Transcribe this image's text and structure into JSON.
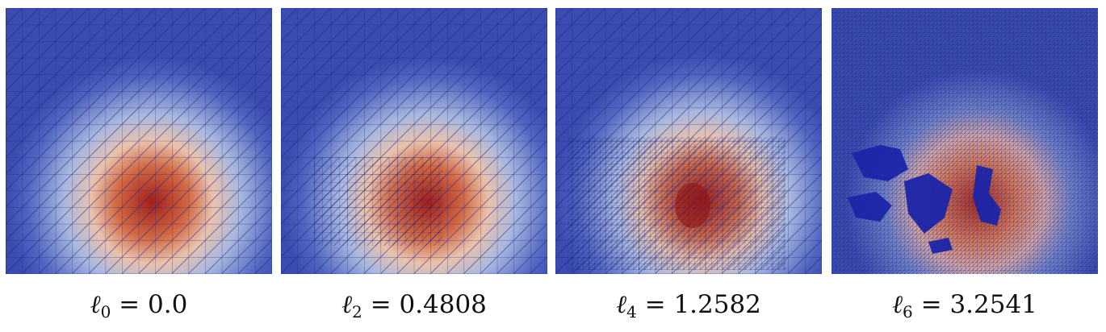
{
  "figure": {
    "panels": [
      {
        "symbol": "ℓ",
        "subscript": "0",
        "operator": "=",
        "value": "0.0",
        "colors": {
          "background": "#3b4bb0",
          "hot": "#b13a22",
          "mid": "#e8d3c6",
          "mesh": "#1a237e"
        }
      },
      {
        "symbol": "ℓ",
        "subscript": "2",
        "operator": "=",
        "value": "0.4808",
        "colors": {
          "background": "#3b4bb0",
          "hot": "#b13a22",
          "mid": "#e8d3c6",
          "mesh": "#1a237e"
        }
      },
      {
        "symbol": "ℓ",
        "subscript": "4",
        "operator": "=",
        "value": "1.2582",
        "colors": {
          "background": "#3b4bb0",
          "hot": "#b13a22",
          "mid": "#e8d3c6",
          "mesh": "#1a237e"
        }
      },
      {
        "symbol": "ℓ",
        "subscript": "6",
        "operator": "=",
        "value": "3.2541",
        "colors": {
          "background": "#3b4bb0",
          "hot": "#b13a22",
          "mid": "#e8d3c6",
          "mesh": "#1a237e"
        }
      }
    ]
  }
}
